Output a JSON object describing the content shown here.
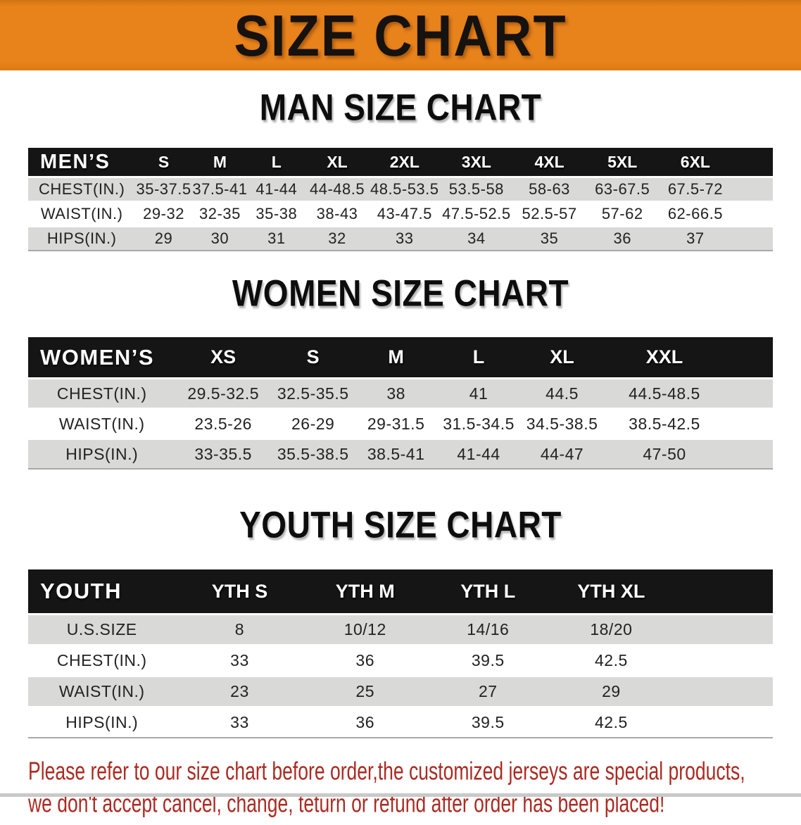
{
  "banner": {
    "title": "SIZE CHART"
  },
  "sections": {
    "men": {
      "heading": "MAN SIZE CHART",
      "table": {
        "header": [
          "MEN’S",
          "S",
          "M",
          "L",
          "XL",
          "2XL",
          "3XL",
          "4XL",
          "5XL",
          "6XL"
        ],
        "rows": [
          [
            "CHEST(IN.)",
            "35-37.5",
            "37.5-41",
            "41-44",
            "44-48.5",
            "48.5-53.5",
            "53.5-58",
            "58-63",
            "63-67.5",
            "67.5-72"
          ],
          [
            "WAIST(IN.)",
            "29-32",
            "32-35",
            "35-38",
            "38-43",
            "43-47.5",
            "47.5-52.5",
            "52.5-57",
            "57-62",
            "62-66.5"
          ],
          [
            "HIPS(IN.)",
            "29",
            "30",
            "31",
            "32",
            "33",
            "34",
            "35",
            "36",
            "37"
          ]
        ]
      }
    },
    "women": {
      "heading": "WOMEN SIZE CHART",
      "table": {
        "header": [
          "WOMEN’S",
          "XS",
          "S",
          "M",
          "L",
          "XL",
          "XXL"
        ],
        "rows": [
          [
            "CHEST(IN.)",
            "29.5-32.5",
            "32.5-35.5",
            "38",
            "41",
            "44.5",
            "44.5-48.5"
          ],
          [
            "WAIST(IN.)",
            "23.5-26",
            "26-29",
            "29-31.5",
            "31.5-34.5",
            "34.5-38.5",
            "38.5-42.5"
          ],
          [
            "HIPS(IN.)",
            "33-35.5",
            "35.5-38.5",
            "38.5-41",
            "41-44",
            "44-47",
            "47-50"
          ]
        ]
      }
    },
    "youth": {
      "heading": "YOUTH SIZE CHART",
      "table": {
        "header": [
          "YOUTH",
          "YTH S",
          "YTH M",
          "YTH L",
          "YTH XL"
        ],
        "rows": [
          [
            "U.S.SIZE",
            "8",
            "10/12",
            "14/16",
            "18/20"
          ],
          [
            "CHEST(IN.)",
            "33",
            "36",
            "39.5",
            "42.5"
          ],
          [
            "WAIST(IN.)",
            "23",
            "25",
            "27",
            "29"
          ],
          [
            "HIPS(IN.)",
            "33",
            "36",
            "39.5",
            "42.5"
          ]
        ]
      }
    }
  },
  "note": {
    "line1": "Please refer to our size chart before order,the customized jerseys are special products,",
    "line2": "we don't accept cancel, change, teturn or refund after order has been placed!"
  },
  "colors": {
    "banner_bg": "#e8821b",
    "table_header_bg": "#151515",
    "table_header_text": "#ffffff",
    "row_alt_bg": "#d9d9d7",
    "row_bg": "#ffffff",
    "note_text": "#ab2b22",
    "title_text": "#151210"
  }
}
